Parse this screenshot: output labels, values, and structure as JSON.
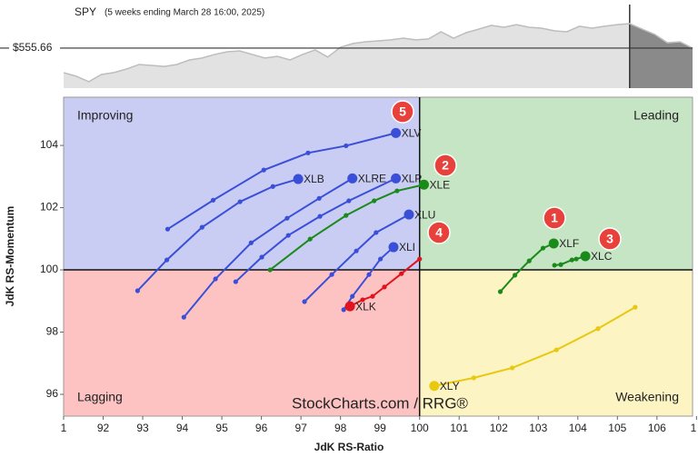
{
  "chart_data": {
    "type": "rrg",
    "x_label": "JdK RS-Ratio",
    "y_label": "JdK RS-Momentum",
    "watermark": "StockCharts.com / RRG®",
    "xlim": [
      91,
      106.9
    ],
    "ylim": [
      95.3,
      105.55
    ],
    "xticks": [
      {
        "value": 91,
        "label": "1"
      },
      92,
      93,
      94,
      95,
      96,
      97,
      98,
      99,
      100,
      101,
      102,
      103,
      104,
      105,
      106,
      {
        "value": 107,
        "label": "1"
      }
    ],
    "yticks": [
      96,
      98,
      100,
      102,
      104
    ],
    "center": {
      "x": 100,
      "y": 100
    },
    "quadrants": [
      {
        "name": "Improving",
        "color": "#c9ccf3",
        "text_color": "#3a4fd8"
      },
      {
        "name": "Leading",
        "color": "#c6e5c4",
        "text_color": "#1a8a1a"
      },
      {
        "name": "Lagging",
        "color": "#fdc3c3",
        "text_color": "#333333"
      },
      {
        "name": "Weakening",
        "color": "#fdf4c3",
        "text_color": "#e8c810"
      }
    ],
    "series": [
      {
        "name": "XLV",
        "color": "#3a4fd8",
        "x": [
          93.63,
          94.78,
          96.06,
          97.18,
          98.14,
          99.4
        ],
        "y": [
          101.31,
          102.24,
          103.21,
          103.76,
          103.99,
          104.4
        ]
      },
      {
        "name": "XLB",
        "color": "#3a4fd8",
        "x": [
          92.87,
          93.61,
          94.5,
          95.46,
          96.29,
          96.93
        ],
        "y": [
          99.33,
          100.32,
          101.37,
          102.19,
          102.68,
          102.92
        ]
      },
      {
        "name": "XLRE",
        "color": "#3a4fd8",
        "x": [
          94.04,
          94.84,
          95.74,
          96.65,
          97.46,
          98.3
        ],
        "y": [
          98.48,
          99.71,
          100.87,
          101.66,
          102.3,
          102.94
        ]
      },
      {
        "name": "XLP",
        "color": "#3a4fd8",
        "x": [
          95.35,
          96.01,
          96.68,
          97.48,
          98.21,
          99.4
        ],
        "y": [
          99.62,
          100.41,
          101.11,
          101.72,
          102.22,
          102.94
        ]
      },
      {
        "name": "XLE",
        "color": "#1a8a1a",
        "x": [
          96.22,
          97.23,
          98.14,
          98.85,
          99.43,
          100.11
        ],
        "y": [
          100.0,
          100.99,
          101.75,
          102.22,
          102.54,
          102.74
        ]
      },
      {
        "name": "XLU",
        "color": "#3a4fd8",
        "x": [
          97.09,
          97.78,
          98.4,
          98.9,
          99.73
        ],
        "y": [
          98.98,
          99.85,
          100.61,
          101.2,
          101.78
        ]
      },
      {
        "name": "XLI",
        "color": "#3a4fd8",
        "x": [
          98.08,
          98.3,
          98.72,
          99.01,
          99.34
        ],
        "y": [
          98.72,
          99.15,
          99.85,
          100.35,
          100.73
        ]
      },
      {
        "name": "XLK",
        "color": "#e0141e",
        "x": [
          100.0,
          99.54,
          99.11,
          98.81,
          98.56,
          98.24
        ],
        "y": [
          100.35,
          99.88,
          99.45,
          99.15,
          99.04,
          98.83
        ]
      },
      {
        "name": "XLF",
        "color": "#1a8a1a",
        "x": [
          102.04,
          102.41,
          102.77,
          103.12,
          103.39
        ],
        "y": [
          99.3,
          99.83,
          100.29,
          100.7,
          100.85
        ]
      },
      {
        "name": "XLC",
        "color": "#1a8a1a",
        "x": [
          103.41,
          103.57,
          103.85,
          103.96,
          104.19
        ],
        "y": [
          100.15,
          100.17,
          100.32,
          100.35,
          100.44
        ]
      },
      {
        "name": "XLY",
        "color": "#e8c810",
        "x": [
          105.45,
          104.51,
          103.46,
          102.34,
          101.37,
          100.37
        ],
        "y": [
          98.8,
          98.11,
          97.43,
          96.85,
          96.53,
          96.27
        ]
      }
    ],
    "annotations": [
      "5",
      "2",
      "4",
      "1",
      "3"
    ],
    "price_strip": {
      "symbol": "SPY",
      "subtitle": "(5 weeks ending March 28 16:00, 2025)",
      "current": 555.66,
      "current_label": "$555.66",
      "ylim": [
        538.9,
        573.9
      ],
      "values": [
        545.4,
        543.9,
        541.6,
        544.6,
        545.4,
        546.9,
        548.8,
        548.4,
        548.0,
        548.8,
        550.7,
        551.5,
        553.0,
        554.1,
        554.5,
        553.0,
        551.5,
        552.2,
        550.7,
        553.0,
        554.9,
        551.9,
        556.0,
        557.6,
        558.3,
        558.7,
        559.1,
        559.8,
        559.1,
        559.5,
        562.5,
        559.8,
        562.1,
        563.6,
        565.2,
        564.4,
        565.5,
        564.4,
        564.0,
        562.9,
        562.5,
        564.8,
        564.0,
        564.8,
        565.5,
        565.9,
        563.6,
        561.4,
        557.9,
        558.3,
        555.66
      ]
    }
  }
}
